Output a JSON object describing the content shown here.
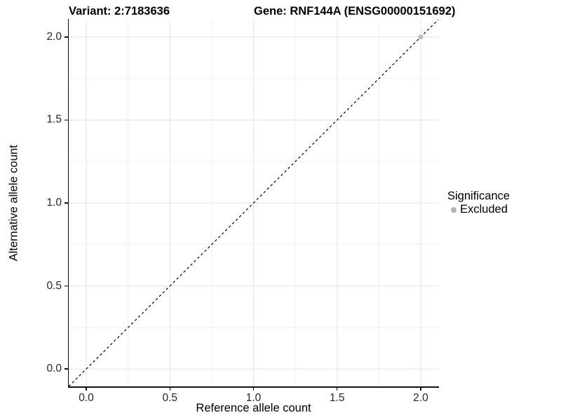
{
  "chart_data": {
    "type": "scatter",
    "title_left": "Variant: 2:7183636",
    "title_right": "Gene: RNF144A (ENSG00000151692)",
    "xlabel": "Reference allele count",
    "ylabel": "Alternative allele count",
    "xlim": [
      -0.105,
      2.105
    ],
    "ylim": [
      -0.105,
      2.105
    ],
    "x_ticks": [
      0.0,
      0.5,
      1.0,
      1.5,
      2.0
    ],
    "y_ticks": [
      0.0,
      0.5,
      1.0,
      1.5,
      2.0
    ],
    "x_tick_labels": [
      "0.0",
      "0.5",
      "1.0",
      "1.5",
      "2.0"
    ],
    "y_tick_labels": [
      "0.0",
      "0.5",
      "1.0",
      "1.5",
      "2.0"
    ],
    "minor_tick_positions": [
      0.25,
      0.75,
      1.25,
      1.75
    ],
    "grid": true,
    "legend_position": "right",
    "series": [
      {
        "name": "Excluded",
        "color": "#bdbdbd",
        "points": [
          [
            2.0,
            2.0
          ]
        ]
      }
    ],
    "reference_line": {
      "type": "identity y=x",
      "style": "dashed",
      "color": "#000000"
    },
    "legend": {
      "title": "Significance",
      "items": [
        {
          "label": "Excluded",
          "color": "#b3b3b3"
        }
      ]
    }
  },
  "colors": {
    "background": "#ffffff",
    "axis_line": "#111111",
    "grid_major": "#e3e3e3",
    "grid_minor": "#efefef",
    "tick_text": "#262626",
    "excluded_point": "#bdbdbd"
  }
}
